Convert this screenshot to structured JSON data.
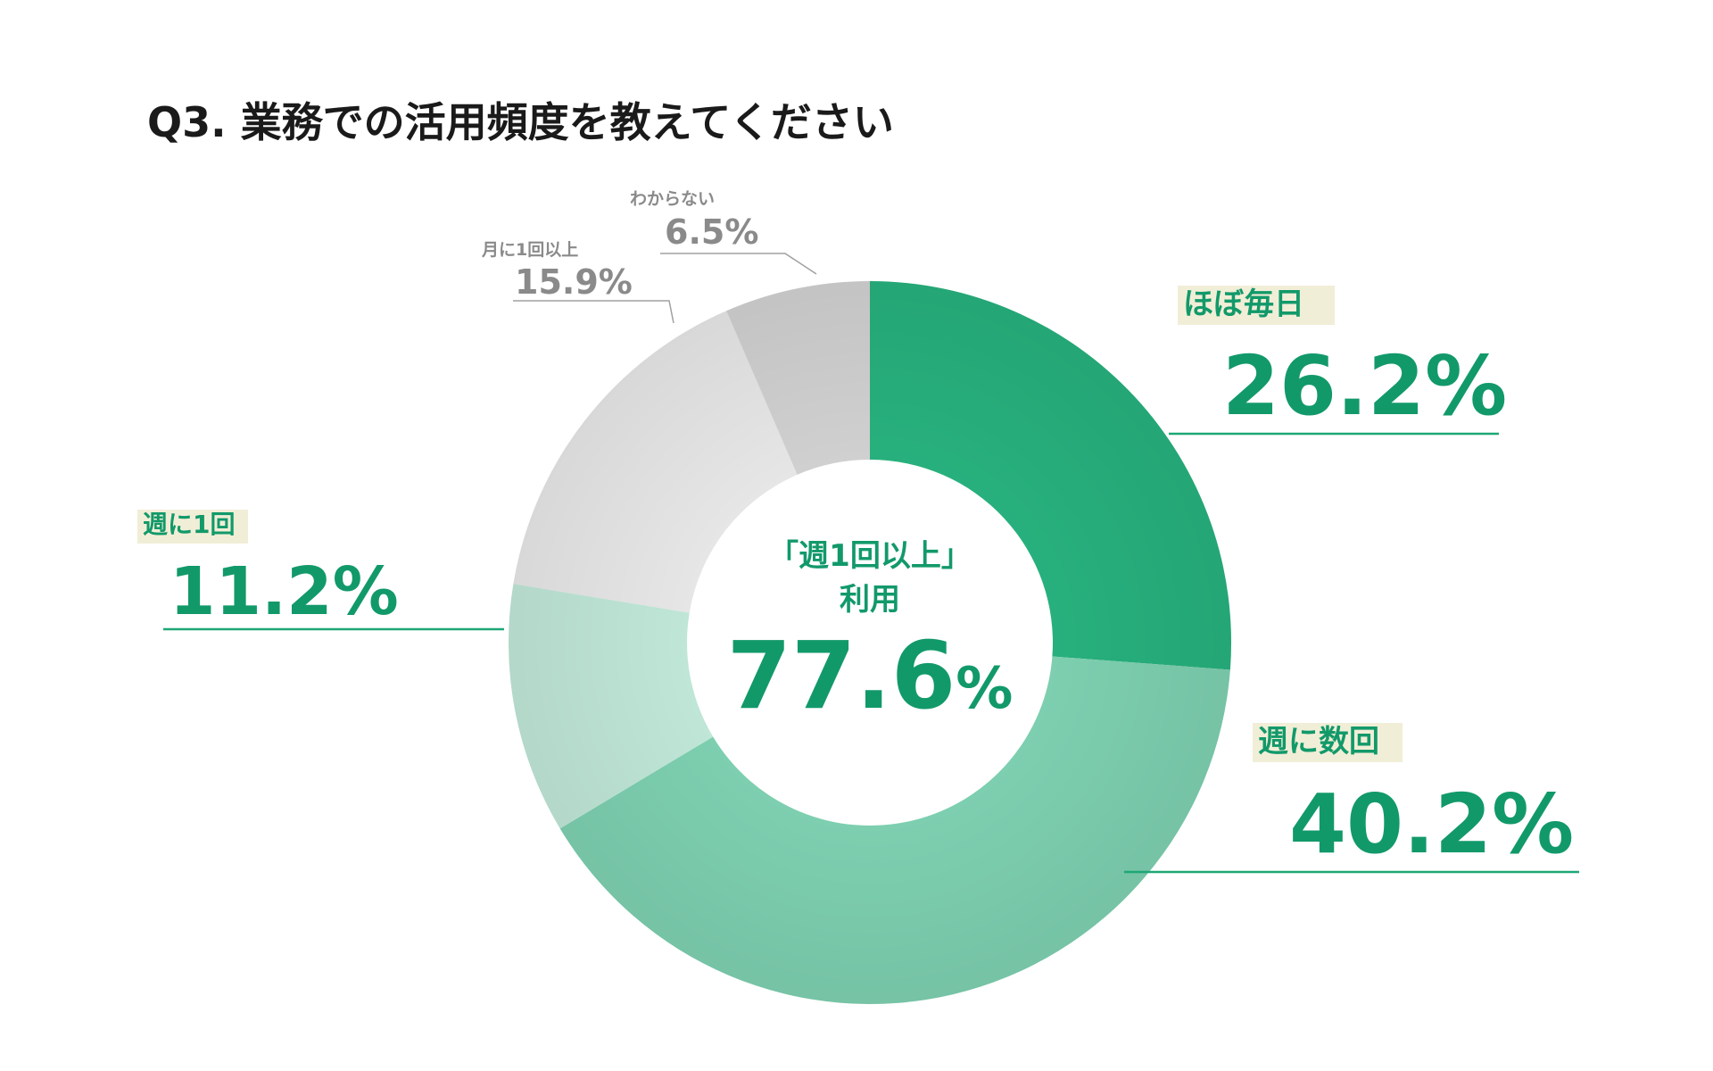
{
  "title": "Q3. 業務での活用頻度を教えてください",
  "center": {
    "label_line1": "「週1回以上」",
    "label_line2": "利用",
    "value": "77.6",
    "unit": "%"
  },
  "colors": {
    "accent": "#12996a",
    "highlight_bg": "#f1eed7",
    "leader_green": "#1ea775",
    "leader_gray": "#a0a0a0"
  },
  "chart_data": {
    "type": "pie",
    "donut": true,
    "title": "Q3. 業務での活用頻度を教えてください",
    "series": [
      {
        "name": "ほぼ毎日",
        "value": 26.2,
        "value_label": "26.2%",
        "color": "#27b07d"
      },
      {
        "name": "週に数回",
        "value": 40.2,
        "value_label": "40.2%",
        "color": "#7dcfb0"
      },
      {
        "name": "週に1回",
        "value": 11.2,
        "value_label": "11.2%",
        "color": "#bfe6d7"
      },
      {
        "name": "月に1回以上",
        "value": 15.9,
        "value_label": "15.9%",
        "color": "#e6e6e6"
      },
      {
        "name": "わからない",
        "value": 6.5,
        "value_label": "6.5%",
        "color": "#d0d0d0"
      }
    ]
  }
}
